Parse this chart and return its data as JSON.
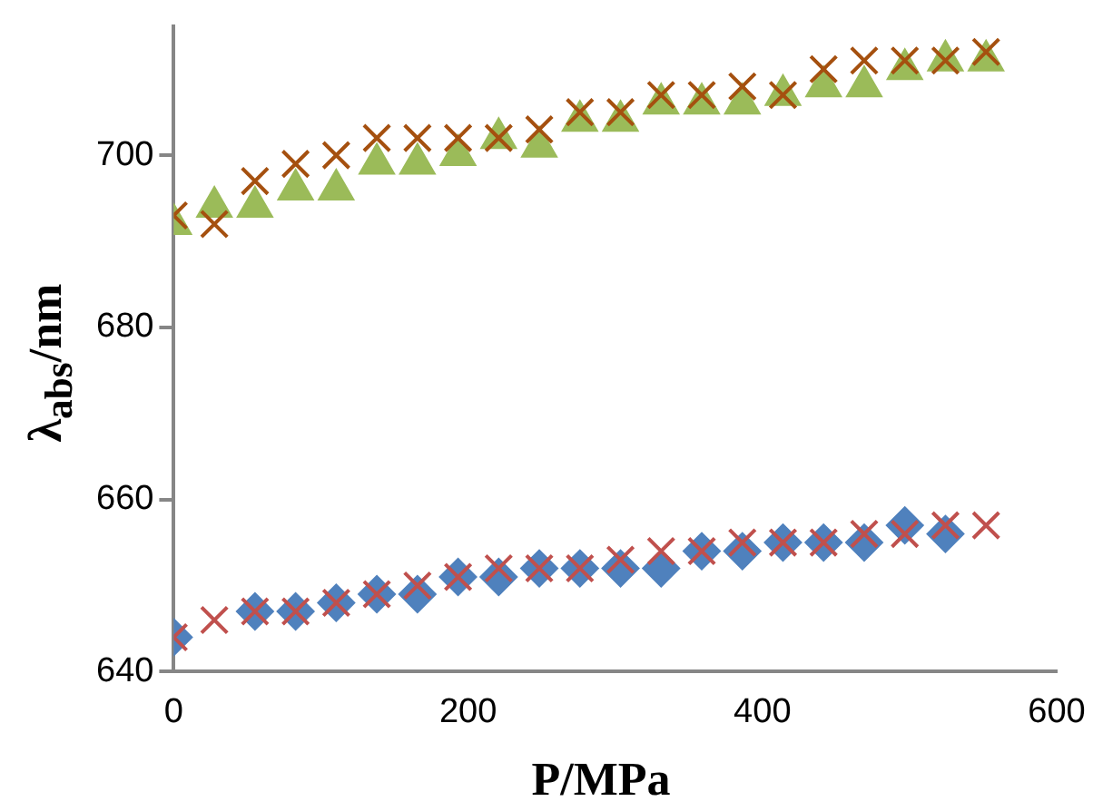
{
  "chart_data": {
    "type": "scatter",
    "xlabel": "P/MPa",
    "ylabel": "λ$_{abs}$/nm",
    "x": [
      0,
      27.6,
      55.2,
      82.8,
      110.4,
      138,
      165.6,
      193.2,
      220.8,
      248.4,
      276,
      303.6,
      331.2,
      358.8,
      386.4,
      414,
      441.6,
      469.2,
      496.8,
      524.4,
      552
    ],
    "xlim": [
      0,
      600
    ],
    "xticks": [
      0,
      200,
      400,
      600
    ],
    "ylim": [
      640,
      715
    ],
    "yticks": [
      640,
      660,
      680,
      700
    ],
    "grid": false,
    "legend": false,
    "series": [
      {
        "color": "#9bbb59",
        "marker": "triangle",
        "values": [
          692,
          694,
          694,
          696,
          696,
          699,
          699,
          700,
          702,
          701,
          704,
          704,
          706,
          706,
          706,
          707,
          708,
          708,
          710,
          711,
          711
        ]
      },
      {
        "color": "#a5500f",
        "marker": "cross",
        "values": [
          693,
          692,
          697,
          699,
          700,
          702,
          702,
          702,
          702,
          703,
          705,
          705,
          707,
          707,
          708,
          707,
          710,
          711,
          711,
          711,
          712
        ]
      },
      {
        "color": "#4f81bd",
        "marker": "diamond",
        "values": [
          644,
          null,
          647,
          647,
          648,
          649,
          649,
          651,
          651,
          652,
          652,
          652,
          652,
          654,
          654,
          655,
          655,
          655,
          657,
          656,
          null
        ]
      },
      {
        "color": "#c0504d",
        "marker": "cross",
        "values": [
          644,
          646,
          647,
          647,
          648,
          649,
          650,
          651,
          652,
          652,
          652,
          653,
          654,
          654,
          655,
          655,
          655,
          656,
          656,
          657,
          657
        ]
      }
    ]
  }
}
